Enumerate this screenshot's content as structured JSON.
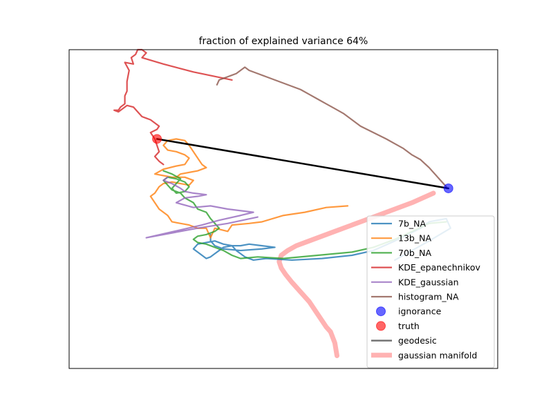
{
  "chart_data": {
    "type": "line",
    "title": "fraction of explained variance 64%",
    "xlabel": "",
    "ylabel": "",
    "xlim": [
      0,
      1
    ],
    "ylim": [
      0,
      1
    ],
    "grid": false,
    "ticks": false,
    "legend": {
      "placement": "lower-right"
    },
    "series": [
      {
        "name": "7b_NA",
        "color": "#1f77b4",
        "kind": "line",
        "points": [
          [
            0.76,
            0.34
          ],
          [
            0.84,
            0.4
          ],
          [
            0.89,
            0.44
          ],
          [
            0.88,
            0.47
          ],
          [
            0.84,
            0.46
          ],
          [
            0.82,
            0.44
          ],
          [
            0.79,
            0.42
          ],
          [
            0.76,
            0.4
          ],
          [
            0.71,
            0.37
          ],
          [
            0.66,
            0.355
          ],
          [
            0.59,
            0.345
          ],
          [
            0.52,
            0.34
          ],
          [
            0.46,
            0.345
          ],
          [
            0.43,
            0.34
          ],
          [
            0.41,
            0.35
          ],
          [
            0.4,
            0.36
          ],
          [
            0.39,
            0.37
          ],
          [
            0.38,
            0.385
          ],
          [
            0.36,
            0.38
          ],
          [
            0.35,
            0.37
          ],
          [
            0.34,
            0.36
          ],
          [
            0.33,
            0.35
          ],
          [
            0.32,
            0.345
          ],
          [
            0.31,
            0.355
          ],
          [
            0.3,
            0.365
          ],
          [
            0.29,
            0.375
          ],
          [
            0.3,
            0.39
          ],
          [
            0.32,
            0.395
          ],
          [
            0.34,
            0.4
          ],
          [
            0.36,
            0.39
          ],
          [
            0.38,
            0.385
          ],
          [
            0.4,
            0.385
          ],
          [
            0.42,
            0.39
          ],
          [
            0.45,
            0.385
          ],
          [
            0.48,
            0.38
          ],
          [
            0.45,
            0.375
          ],
          [
            0.4,
            0.37
          ],
          [
            0.36,
            0.375
          ],
          [
            0.34,
            0.385
          ],
          [
            0.33,
            0.4
          ],
          [
            0.33,
            0.42
          ]
        ]
      },
      {
        "name": "13b_NA",
        "color": "#ff7f0e",
        "kind": "line",
        "points": [
          [
            0.65,
            0.51
          ],
          [
            0.6,
            0.505
          ],
          [
            0.55,
            0.49
          ],
          [
            0.5,
            0.48
          ],
          [
            0.45,
            0.46
          ],
          [
            0.42,
            0.455
          ],
          [
            0.38,
            0.45
          ],
          [
            0.37,
            0.43
          ],
          [
            0.34,
            0.44
          ],
          [
            0.33,
            0.41
          ],
          [
            0.32,
            0.44
          ],
          [
            0.3,
            0.44
          ],
          [
            0.28,
            0.45
          ],
          [
            0.26,
            0.455
          ],
          [
            0.24,
            0.46
          ],
          [
            0.23,
            0.48
          ],
          [
            0.22,
            0.49
          ],
          [
            0.21,
            0.5
          ],
          [
            0.2,
            0.52
          ],
          [
            0.19,
            0.54
          ],
          [
            0.2,
            0.55
          ],
          [
            0.21,
            0.57
          ],
          [
            0.22,
            0.58
          ],
          [
            0.24,
            0.585
          ],
          [
            0.26,
            0.58
          ],
          [
            0.28,
            0.575
          ],
          [
            0.29,
            0.59
          ],
          [
            0.27,
            0.6
          ],
          [
            0.24,
            0.6
          ],
          [
            0.22,
            0.605
          ],
          [
            0.2,
            0.61
          ],
          [
            0.22,
            0.625
          ],
          [
            0.25,
            0.635
          ],
          [
            0.27,
            0.64
          ],
          [
            0.28,
            0.66
          ],
          [
            0.27,
            0.67
          ],
          [
            0.25,
            0.68
          ],
          [
            0.23,
            0.685
          ],
          [
            0.22,
            0.7
          ],
          [
            0.23,
            0.715
          ],
          [
            0.25,
            0.72
          ],
          [
            0.27,
            0.715
          ],
          [
            0.28,
            0.7
          ],
          [
            0.29,
            0.68
          ],
          [
            0.3,
            0.66
          ],
          [
            0.31,
            0.64
          ],
          [
            0.32,
            0.63
          ],
          [
            0.3,
            0.62
          ],
          [
            0.28,
            0.615
          ],
          [
            0.26,
            0.61
          ],
          [
            0.25,
            0.6
          ]
        ]
      },
      {
        "name": "70b_NA",
        "color": "#2ca02c",
        "kind": "line",
        "points": [
          [
            0.88,
            0.46
          ],
          [
            0.84,
            0.455
          ],
          [
            0.8,
            0.43
          ],
          [
            0.76,
            0.405
          ],
          [
            0.71,
            0.38
          ],
          [
            0.66,
            0.365
          ],
          [
            0.58,
            0.355
          ],
          [
            0.5,
            0.345
          ],
          [
            0.44,
            0.35
          ],
          [
            0.4,
            0.345
          ],
          [
            0.38,
            0.355
          ],
          [
            0.36,
            0.37
          ],
          [
            0.34,
            0.38
          ],
          [
            0.32,
            0.39
          ],
          [
            0.3,
            0.395
          ],
          [
            0.29,
            0.405
          ],
          [
            0.3,
            0.415
          ],
          [
            0.32,
            0.42
          ],
          [
            0.34,
            0.43
          ],
          [
            0.35,
            0.44
          ],
          [
            0.34,
            0.455
          ],
          [
            0.33,
            0.47
          ],
          [
            0.32,
            0.49
          ],
          [
            0.3,
            0.5
          ],
          [
            0.29,
            0.52
          ],
          [
            0.27,
            0.535
          ],
          [
            0.26,
            0.55
          ],
          [
            0.24,
            0.56
          ],
          [
            0.23,
            0.575
          ],
          [
            0.22,
            0.59
          ],
          [
            0.23,
            0.6
          ],
          [
            0.25,
            0.595
          ],
          [
            0.27,
            0.585
          ],
          [
            0.28,
            0.57
          ],
          [
            0.27,
            0.555
          ],
          [
            0.25,
            0.55
          ],
          [
            0.24,
            0.565
          ],
          [
            0.25,
            0.58
          ],
          [
            0.26,
            0.595
          ],
          [
            0.24,
            0.61
          ],
          [
            0.22,
            0.62
          ]
        ]
      },
      {
        "name": "KDE_epanechnikov",
        "color": "#d62728",
        "kind": "line",
        "points": [
          [
            0.38,
            0.905
          ],
          [
            0.29,
            0.93
          ],
          [
            0.22,
            0.955
          ],
          [
            0.17,
            0.975
          ],
          [
            0.18,
            0.99
          ],
          [
            0.17,
            1.0
          ],
          [
            0.16,
            1.0
          ],
          [
            0.155,
            0.985
          ],
          [
            0.145,
            0.975
          ],
          [
            0.15,
            0.955
          ],
          [
            0.13,
            0.96
          ],
          [
            0.14,
            0.935
          ],
          [
            0.135,
            0.9
          ],
          [
            0.135,
            0.87
          ],
          [
            0.13,
            0.855
          ],
          [
            0.13,
            0.83
          ],
          [
            0.12,
            0.82
          ],
          [
            0.115,
            0.81
          ],
          [
            0.105,
            0.81
          ],
          [
            0.115,
            0.805
          ],
          [
            0.125,
            0.815
          ],
          [
            0.135,
            0.825
          ],
          [
            0.15,
            0.82
          ],
          [
            0.16,
            0.805
          ],
          [
            0.17,
            0.79
          ],
          [
            0.18,
            0.785
          ],
          [
            0.19,
            0.78
          ],
          [
            0.2,
            0.77
          ],
          [
            0.21,
            0.76
          ],
          [
            0.205,
            0.75
          ],
          [
            0.19,
            0.74
          ],
          [
            0.2,
            0.72
          ],
          [
            0.205,
            0.7
          ],
          [
            0.21,
            0.68
          ],
          [
            0.2,
            0.665
          ],
          [
            0.21,
            0.65
          ],
          [
            0.22,
            0.64
          ]
        ]
      },
      {
        "name": "KDE_gaussian",
        "color": "#9467bd",
        "kind": "line",
        "points": [
          [
            0.44,
            0.475
          ],
          [
            0.37,
            0.455
          ],
          [
            0.3,
            0.44
          ],
          [
            0.24,
            0.425
          ],
          [
            0.18,
            0.41
          ],
          [
            0.245,
            0.43
          ],
          [
            0.31,
            0.45
          ],
          [
            0.35,
            0.465
          ],
          [
            0.4,
            0.48
          ],
          [
            0.43,
            0.49
          ],
          [
            0.37,
            0.5
          ],
          [
            0.33,
            0.51
          ],
          [
            0.29,
            0.505
          ],
          [
            0.25,
            0.52
          ],
          [
            0.27,
            0.535
          ],
          [
            0.3,
            0.54
          ],
          [
            0.32,
            0.545
          ],
          [
            0.29,
            0.55
          ],
          [
            0.27,
            0.555
          ],
          [
            0.26,
            0.565
          ],
          [
            0.24,
            0.58
          ],
          [
            0.22,
            0.59
          ],
          [
            0.23,
            0.6
          ]
        ]
      },
      {
        "name": "histogram_NA",
        "color": "#8c564b",
        "kind": "line",
        "points": [
          [
            0.88,
            0.57
          ],
          [
            0.86,
            0.6
          ],
          [
            0.84,
            0.63
          ],
          [
            0.82,
            0.655
          ],
          [
            0.8,
            0.67
          ],
          [
            0.78,
            0.69
          ],
          [
            0.76,
            0.705
          ],
          [
            0.74,
            0.72
          ],
          [
            0.71,
            0.74
          ],
          [
            0.68,
            0.76
          ],
          [
            0.66,
            0.78
          ],
          [
            0.64,
            0.8
          ],
          [
            0.62,
            0.815
          ],
          [
            0.6,
            0.83
          ],
          [
            0.58,
            0.845
          ],
          [
            0.56,
            0.86
          ],
          [
            0.54,
            0.875
          ],
          [
            0.52,
            0.885
          ],
          [
            0.5,
            0.895
          ],
          [
            0.48,
            0.905
          ],
          [
            0.46,
            0.915
          ],
          [
            0.44,
            0.925
          ],
          [
            0.42,
            0.935
          ],
          [
            0.41,
            0.945
          ],
          [
            0.4,
            0.935
          ],
          [
            0.39,
            0.925
          ],
          [
            0.38,
            0.92
          ],
          [
            0.37,
            0.915
          ],
          [
            0.36,
            0.91
          ],
          [
            0.35,
            0.905
          ],
          [
            0.345,
            0.89
          ]
        ]
      },
      {
        "name": "ignorance",
        "color": "#0000ff",
        "kind": "scatter",
        "points": [
          [
            0.885,
            0.565
          ]
        ]
      },
      {
        "name": "truth",
        "color": "#ff0000",
        "kind": "scatter",
        "points": [
          [
            0.205,
            0.72
          ]
        ]
      },
      {
        "name": "geodesic",
        "color": "#000000",
        "kind": "line",
        "points": [
          [
            0.205,
            0.72
          ],
          [
            0.885,
            0.565
          ]
        ]
      },
      {
        "name": "gaussian manifold",
        "color": "#ffb2b2",
        "kind": "band",
        "points": [
          [
            0.85,
            0.55
          ],
          [
            0.8,
            0.52
          ],
          [
            0.74,
            0.49
          ],
          [
            0.68,
            0.46
          ],
          [
            0.62,
            0.43
          ],
          [
            0.56,
            0.4
          ],
          [
            0.53,
            0.385
          ],
          [
            0.51,
            0.37
          ],
          [
            0.495,
            0.355
          ],
          [
            0.49,
            0.335
          ],
          [
            0.495,
            0.315
          ],
          [
            0.505,
            0.295
          ],
          [
            0.52,
            0.27
          ],
          [
            0.54,
            0.24
          ],
          [
            0.56,
            0.21
          ],
          [
            0.575,
            0.18
          ],
          [
            0.59,
            0.15
          ],
          [
            0.6,
            0.13
          ],
          [
            0.61,
            0.115
          ],
          [
            0.62,
            0.08
          ],
          [
            0.625,
            0.04
          ]
        ]
      }
    ]
  }
}
